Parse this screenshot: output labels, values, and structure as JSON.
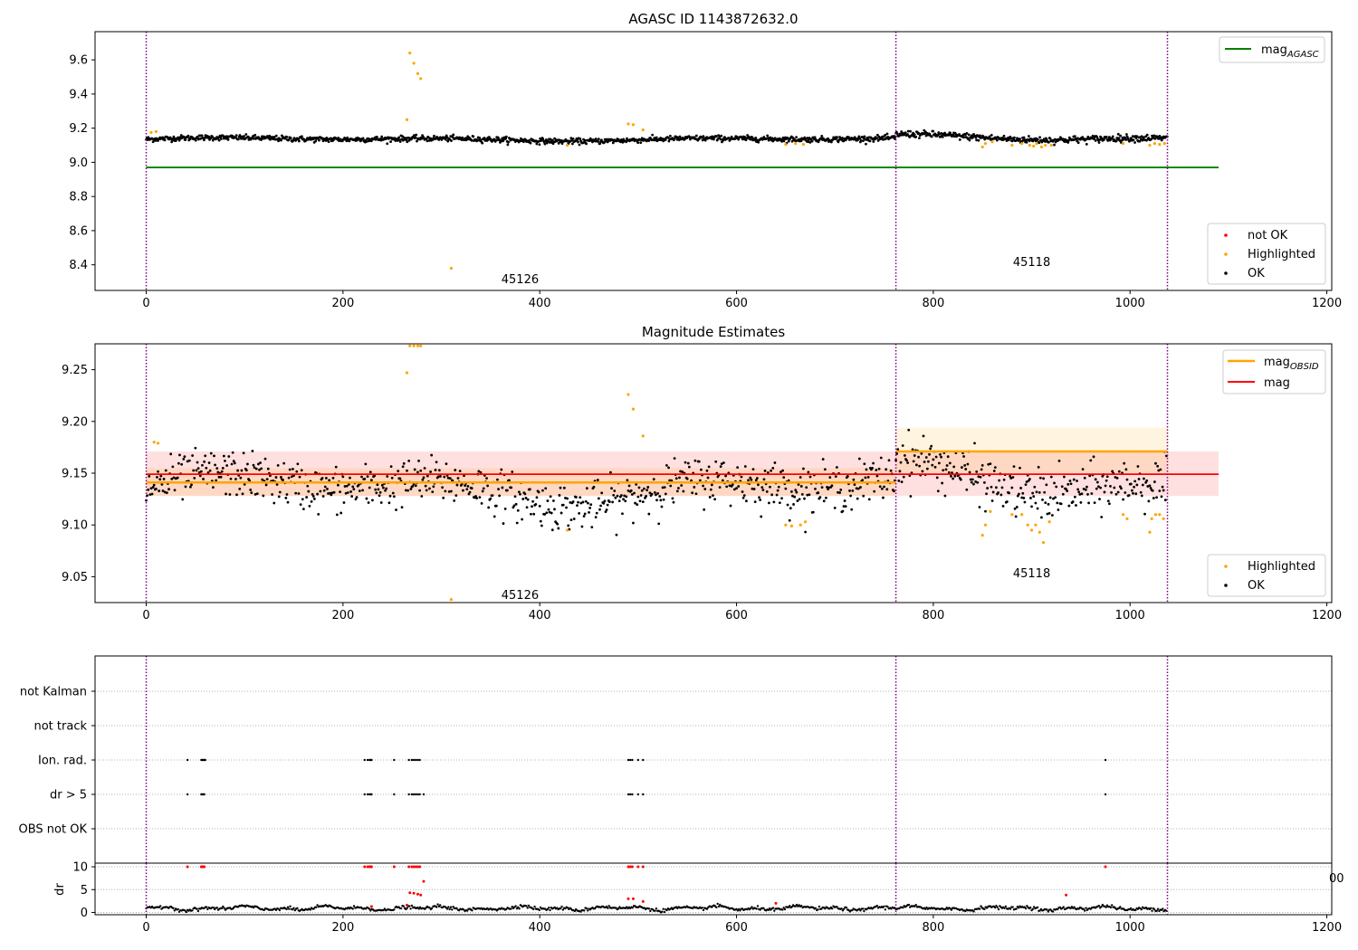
{
  "chart_data": [
    {
      "type": "scatter",
      "title": "AGASC ID 1143872632.0",
      "xlim": [
        -52,
        1205
      ],
      "ylim": [
        8.25,
        9.765
      ],
      "xticks": [
        0,
        200,
        400,
        600,
        800,
        1000,
        1200
      ],
      "yticks": [
        8.4,
        8.6,
        8.8,
        9.0,
        9.2,
        9.4,
        9.6
      ],
      "ytick_labels": [
        "8.4",
        "8.6",
        "8.8",
        "9.0",
        "9.2",
        "9.4",
        "9.6"
      ],
      "vlines": [
        0,
        762,
        1038
      ],
      "obsid_labels": [
        {
          "x": 380,
          "y": 8.32,
          "text": "45126"
        },
        {
          "x": 900,
          "y": 8.42,
          "text": "45118"
        }
      ],
      "hline": {
        "name": "mag_AGASC",
        "y": 8.97,
        "x": [
          0,
          1090
        ],
        "color": "#008000"
      },
      "segments": [
        {
          "x": [
            0,
            762
          ],
          "mean": 9.135,
          "amp": 0.012,
          "noise": 0.008
        },
        {
          "x": [
            762,
            1038
          ],
          "mean": 9.14,
          "amp": 0.025,
          "noise": 0.01
        }
      ],
      "highlighted": [
        [
          5,
          9.175
        ],
        [
          10,
          9.18
        ],
        [
          265,
          9.25
        ],
        [
          268,
          9.64
        ],
        [
          272,
          9.58
        ],
        [
          276,
          9.52
        ],
        [
          279,
          9.49
        ],
        [
          310,
          8.38
        ],
        [
          428,
          9.1
        ],
        [
          490,
          9.225
        ],
        [
          495,
          9.22
        ],
        [
          505,
          9.19
        ],
        [
          650,
          9.105
        ],
        [
          660,
          9.11
        ],
        [
          668,
          9.105
        ],
        [
          850,
          9.09
        ],
        [
          853,
          9.11
        ],
        [
          860,
          9.12
        ],
        [
          880,
          9.1
        ],
        [
          890,
          9.11
        ],
        [
          898,
          9.1
        ],
        [
          902,
          9.095
        ],
        [
          905,
          9.11
        ],
        [
          910,
          9.09
        ],
        [
          914,
          9.1
        ],
        [
          920,
          9.1
        ],
        [
          993,
          9.11
        ],
        [
          1020,
          9.1
        ],
        [
          1025,
          9.11
        ],
        [
          1030,
          9.105
        ],
        [
          1035,
          9.11
        ]
      ],
      "legend_top": {
        "entries": [
          "mag_AGASC"
        ],
        "position": "top-right"
      },
      "legend_bottom": {
        "entries": [
          "not OK",
          "Highlighted",
          "OK"
        ],
        "position": "bottom-right"
      },
      "colors": {
        "ok": "#000000",
        "highlighted": "#ffa500",
        "not_ok": "#ff0000",
        "vline": "#800080"
      }
    },
    {
      "type": "scatter",
      "title": "Magnitude Estimates",
      "xlim": [
        -52,
        1205
      ],
      "ylim": [
        9.025,
        9.275
      ],
      "xticks": [
        0,
        200,
        400,
        600,
        800,
        1000,
        1200
      ],
      "yticks": [
        9.05,
        9.1,
        9.15,
        9.2,
        9.25
      ],
      "ytick_labels": [
        "9.05",
        "9.10",
        "9.15",
        "9.20",
        "9.25"
      ],
      "vlines": [
        0,
        762,
        1038
      ],
      "obsid_labels": [
        {
          "x": 380,
          "y": 9.033,
          "text": "45126"
        },
        {
          "x": 900,
          "y": 9.054,
          "text": "45118"
        }
      ],
      "mag": {
        "name": "mag",
        "y": 9.149,
        "band": [
          9.128,
          9.171
        ],
        "x": [
          0,
          1090
        ],
        "color": "#ff0000"
      },
      "mag_obsid": [
        {
          "x": [
            0,
            762
          ],
          "y": 9.141,
          "band": [
            9.128,
            9.155
          ]
        },
        {
          "x": [
            762,
            1038
          ],
          "y": 9.171,
          "band": [
            9.15,
            9.194
          ]
        }
      ],
      "segments": [
        {
          "x": [
            0,
            762
          ],
          "mean": 9.135,
          "amp": 0.018,
          "noise": 0.011
        },
        {
          "x": [
            762,
            1038
          ],
          "mean": 9.138,
          "amp": 0.025,
          "noise": 0.012
        }
      ],
      "highlighted": [
        [
          8,
          9.18
        ],
        [
          12,
          9.179
        ],
        [
          265,
          9.247
        ],
        [
          268,
          9.273
        ],
        [
          272,
          9.273
        ],
        [
          276,
          9.273
        ],
        [
          279,
          9.273
        ],
        [
          310,
          9.028
        ],
        [
          428,
          9.095
        ],
        [
          490,
          9.226
        ],
        [
          495,
          9.212
        ],
        [
          505,
          9.186
        ],
        [
          650,
          9.1
        ],
        [
          656,
          9.099
        ],
        [
          665,
          9.1
        ],
        [
          670,
          9.103
        ],
        [
          850,
          9.09
        ],
        [
          853,
          9.1
        ],
        [
          858,
          9.113
        ],
        [
          880,
          9.11
        ],
        [
          890,
          9.11
        ],
        [
          896,
          9.1
        ],
        [
          900,
          9.095
        ],
        [
          904,
          9.1
        ],
        [
          908,
          9.093
        ],
        [
          912,
          9.083
        ],
        [
          918,
          9.103
        ],
        [
          993,
          9.11
        ],
        [
          997,
          9.106
        ],
        [
          1020,
          9.093
        ],
        [
          1022,
          9.106
        ],
        [
          1026,
          9.11
        ],
        [
          1030,
          9.11
        ],
        [
          1034,
          9.106
        ]
      ],
      "legend_top": {
        "entries": [
          "mag_OBSID",
          "mag"
        ],
        "position": "top-right"
      },
      "legend_bottom": {
        "entries": [
          "Highlighted",
          "OK"
        ],
        "position": "bottom-right"
      },
      "colors": {
        "ok": "#000000",
        "highlighted": "#ffa500",
        "mag": "#ff0000",
        "mag_obsid": "#ffa500",
        "vline": "#800080"
      }
    },
    {
      "type": "scatter",
      "title": "",
      "xlim": [
        -52,
        1205
      ],
      "categories": [
        "not Kalman",
        "not track",
        "Ion. rad.",
        "dr > 5",
        "OBS not OK"
      ],
      "vlines": [
        0,
        762,
        1038
      ],
      "events": {
        "Ion. rad.": [
          42,
          56,
          57,
          58,
          59,
          60,
          222,
          225,
          227,
          228,
          229,
          252,
          267,
          270,
          272,
          274,
          276,
          278,
          490,
          492,
          494,
          500,
          505,
          975
        ],
        "dr > 5": [
          42,
          56,
          57,
          58,
          59,
          222,
          225,
          227,
          228,
          229,
          252,
          267,
          270,
          272,
          274,
          276,
          278,
          282,
          490,
          492,
          494,
          500,
          505,
          975
        ]
      }
    },
    {
      "type": "scatter",
      "title": "",
      "ylabel": "dr",
      "xlim": [
        -52,
        1205
      ],
      "ylim": [
        -0.5,
        10.8
      ],
      "xticks": [
        0,
        200,
        400,
        600,
        800,
        1000,
        1200
      ],
      "xtick_labels": [
        "0",
        "200",
        "400",
        "600",
        "800",
        "1000",
        "1200"
      ],
      "yticks": [
        0,
        5,
        10
      ],
      "ytick_labels": [
        "0",
        "5",
        "10"
      ],
      "vlines": [
        0,
        762,
        1038
      ],
      "stray_label": "00",
      "baseline": {
        "mean": 0.9,
        "amp": 0.5
      },
      "not_ok_points": [
        [
          42,
          10
        ],
        [
          56,
          10
        ],
        [
          57,
          10
        ],
        [
          58,
          10
        ],
        [
          59,
          10
        ],
        [
          222,
          10
        ],
        [
          225,
          10
        ],
        [
          227,
          10
        ],
        [
          228,
          10
        ],
        [
          229,
          10
        ],
        [
          252,
          10
        ],
        [
          267,
          10
        ],
        [
          270,
          10
        ],
        [
          272,
          10
        ],
        [
          274,
          10
        ],
        [
          276,
          10
        ],
        [
          278,
          10
        ],
        [
          490,
          10
        ],
        [
          492,
          10
        ],
        [
          494,
          10
        ],
        [
          500,
          10
        ],
        [
          505,
          10
        ],
        [
          975,
          10
        ],
        [
          282,
          6.8
        ],
        [
          268,
          4.3
        ],
        [
          272,
          4.2
        ],
        [
          276,
          4.0
        ],
        [
          279,
          3.8
        ],
        [
          490,
          3.0
        ],
        [
          495,
          3.0
        ],
        [
          935,
          3.8
        ],
        [
          505,
          2.4
        ],
        [
          265,
          1.6
        ],
        [
          229,
          1.3
        ],
        [
          640,
          2.0
        ]
      ],
      "colors": {
        "ok": "#000000",
        "not_ok": "#ff0000",
        "vline": "#800080"
      }
    }
  ]
}
